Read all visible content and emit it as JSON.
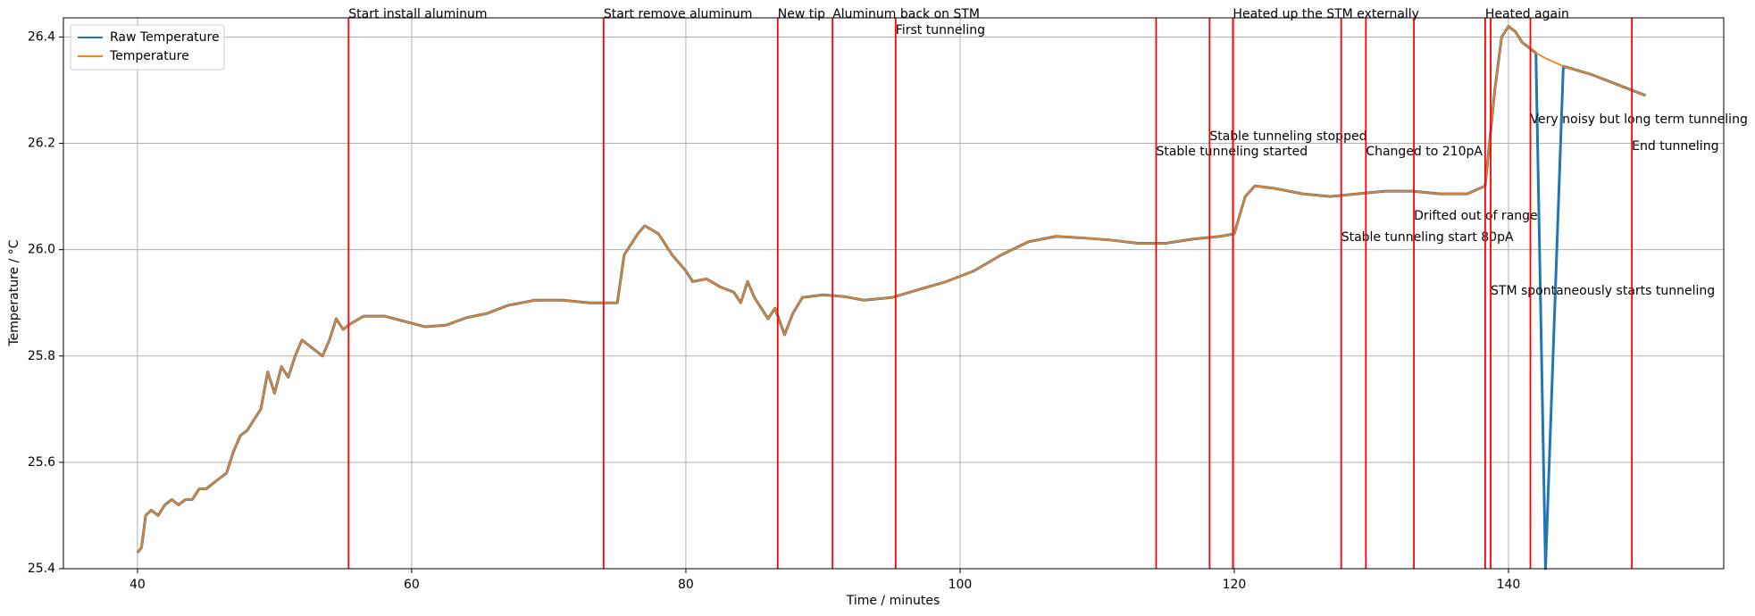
{
  "chart_data": {
    "type": "line",
    "xlabel": "Time / minutes",
    "ylabel": "Temperature / °C",
    "x": [
      40.0,
      40.3,
      40.6,
      41.0,
      41.5,
      42.0,
      42.5,
      43.0,
      43.5,
      44.0,
      44.5,
      45.0,
      45.5,
      46.0,
      46.5,
      47.0,
      47.5,
      48.0,
      48.5,
      49.0,
      49.5,
      50.0,
      50.5,
      51.0,
      51.5,
      52.0,
      52.5,
      53.0,
      53.5,
      54.0,
      54.5,
      55.0,
      55.5,
      56.5,
      58.0,
      59.5,
      61.0,
      62.5,
      64.0,
      65.5,
      67.0,
      69.0,
      71.0,
      73.0,
      75.0,
      75.5,
      76.5,
      77.0,
      78.0,
      79.0,
      80.0,
      80.5,
      81.5,
      82.5,
      83.5,
      84.0,
      84.5,
      85.0,
      85.5,
      86.0,
      86.5,
      87.2,
      87.8,
      88.5,
      90.0,
      91.5,
      93.0,
      95.0,
      97.0,
      99.0,
      101.0,
      103.0,
      105.0,
      107.0,
      109.0,
      111.0,
      113.0,
      115.0,
      117.0,
      119.0,
      120.0,
      120.8,
      121.5,
      123.0,
      125.0,
      127.0,
      129.0,
      131.0,
      133.0,
      135.0,
      137.0,
      138.3,
      139.0,
      139.5,
      140.0,
      140.5,
      141.0,
      142.0,
      142.7,
      144.0,
      146.0,
      148.0,
      150.0
    ],
    "series": [
      {
        "name": "Raw Temperature",
        "color": "#1f77b4",
        "values": [
          25.43,
          25.44,
          25.5,
          25.51,
          25.5,
          25.52,
          25.53,
          25.52,
          25.53,
          25.53,
          25.55,
          25.55,
          25.56,
          25.57,
          25.58,
          25.62,
          25.65,
          25.66,
          25.68,
          25.7,
          25.77,
          25.73,
          25.78,
          25.76,
          25.8,
          25.83,
          25.82,
          25.81,
          25.8,
          25.83,
          25.87,
          25.85,
          25.86,
          25.875,
          25.875,
          25.865,
          25.855,
          25.858,
          25.872,
          25.88,
          25.895,
          25.905,
          25.905,
          25.9,
          25.9,
          25.99,
          26.03,
          26.045,
          26.03,
          25.99,
          25.96,
          25.94,
          25.945,
          25.93,
          25.92,
          25.9,
          25.94,
          25.91,
          25.89,
          25.87,
          25.89,
          25.84,
          25.88,
          25.91,
          25.915,
          25.912,
          25.905,
          25.91,
          25.925,
          25.94,
          25.96,
          25.99,
          26.015,
          26.025,
          26.022,
          26.018,
          26.012,
          26.012,
          26.02,
          26.025,
          26.03,
          26.1,
          26.12,
          26.115,
          26.105,
          26.1,
          26.105,
          26.11,
          26.11,
          26.105,
          26.105,
          26.12,
          26.3,
          26.4,
          26.42,
          26.41,
          26.39,
          26.37,
          25.4,
          26.345,
          26.33,
          26.31,
          26.29
        ]
      },
      {
        "name": "Temperature",
        "color": "#ff7f0e",
        "values": [
          25.43,
          25.44,
          25.5,
          25.51,
          25.5,
          25.52,
          25.53,
          25.52,
          25.53,
          25.53,
          25.55,
          25.55,
          25.56,
          25.57,
          25.58,
          25.62,
          25.65,
          25.66,
          25.68,
          25.7,
          25.77,
          25.73,
          25.78,
          25.76,
          25.8,
          25.83,
          25.82,
          25.81,
          25.8,
          25.83,
          25.87,
          25.85,
          25.86,
          25.875,
          25.875,
          25.865,
          25.855,
          25.858,
          25.872,
          25.88,
          25.895,
          25.905,
          25.905,
          25.9,
          25.9,
          25.99,
          26.03,
          26.045,
          26.03,
          25.99,
          25.96,
          25.94,
          25.945,
          25.93,
          25.92,
          25.9,
          25.94,
          25.91,
          25.89,
          25.87,
          25.89,
          25.84,
          25.88,
          25.91,
          25.915,
          25.912,
          25.905,
          25.91,
          25.925,
          25.94,
          25.96,
          25.99,
          26.015,
          26.025,
          26.022,
          26.018,
          26.012,
          26.012,
          26.02,
          26.025,
          26.03,
          26.1,
          26.12,
          26.115,
          26.105,
          26.1,
          26.105,
          26.11,
          26.11,
          26.105,
          26.105,
          26.12,
          26.3,
          26.4,
          26.42,
          26.41,
          26.39,
          26.37,
          26.36,
          26.345,
          26.33,
          26.31,
          26.29
        ]
      }
    ],
    "events": [
      {
        "x": 55.4,
        "label": "Start install aluminum"
      },
      {
        "x": 74.0,
        "label": "Start remove aluminum"
      },
      {
        "x": 86.7,
        "label": "New tip"
      },
      {
        "x": 90.7,
        "label": "Aluminum back on STM"
      },
      {
        "x": 95.3,
        "label": "First tunneling"
      },
      {
        "x": 114.3,
        "label": "Stable tunneling started"
      },
      {
        "x": 118.2,
        "label": "Stable tunneling stopped"
      },
      {
        "x": 119.9,
        "label": "Heated up the STM externally"
      },
      {
        "x": 127.8,
        "label": "Stable tunneling start 80pA"
      },
      {
        "x": 129.6,
        "label": "Changed to 210pA"
      },
      {
        "x": 133.1,
        "label": "Drifted out of range"
      },
      {
        "x": 138.3,
        "label": "Heated again"
      },
      {
        "x": 138.7,
        "label": "STM spontaneously starts tunneling"
      },
      {
        "x": 141.6,
        "label": "Very noisy but long term tunneling"
      },
      {
        "x": 149.0,
        "label": "End tunneling"
      }
    ],
    "event_color": "#ff0000",
    "xlim": [
      34.6,
      155.7
    ],
    "ylim": [
      25.4,
      26.436
    ],
    "xticks": [
      40,
      60,
      80,
      100,
      120,
      140
    ],
    "yticks": [
      25.4,
      25.6,
      25.8,
      {
        "value": 26.0,
        "label": "26.0"
      },
      26.2,
      26.4
    ],
    "grid": true,
    "legend": "upper left"
  }
}
